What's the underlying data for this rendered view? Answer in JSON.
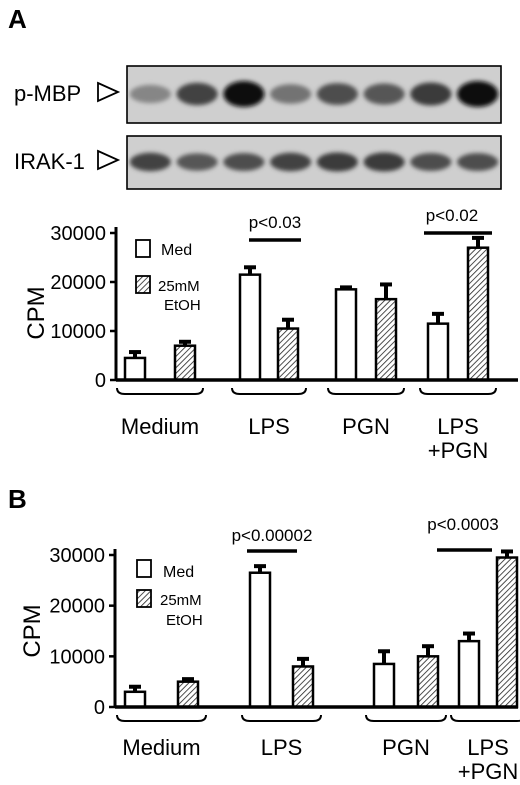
{
  "panels": [
    {
      "label": "A",
      "blot_labels": [
        "p-MBP",
        "IRAK-1"
      ]
    },
    {
      "label": "B"
    }
  ],
  "chart_data": [
    {
      "panel": "A",
      "type": "bar",
      "categories": [
        "Medium",
        "LPS",
        "PGN",
        "LPS +PGN"
      ],
      "category_lines": [
        [
          "Medium"
        ],
        [
          "LPS"
        ],
        [
          "PGN"
        ],
        [
          "LPS",
          "+PGN"
        ]
      ],
      "ylabel": "CPM",
      "ylim": [
        0,
        30000
      ],
      "yticks": [
        0,
        10000,
        20000,
        30000
      ],
      "legend": {
        "placement": "top-left",
        "entries": [
          "Med",
          "25mM EtOH"
        ]
      },
      "series": [
        {
          "name": "Med",
          "fill": "open",
          "values": [
            4500,
            21500,
            18500,
            11500
          ],
          "errors": [
            1200,
            1500,
            400,
            2000
          ]
        },
        {
          "name": "25mM EtOH",
          "fill": "hatched",
          "values": [
            7000,
            10500,
            16500,
            27000
          ],
          "errors": [
            800,
            1800,
            3000,
            2000
          ]
        }
      ],
      "annotations": [
        {
          "text": "p<0.03",
          "category": "LPS"
        },
        {
          "text": "p<0.02",
          "category": "LPS +PGN"
        }
      ],
      "grid": false
    },
    {
      "panel": "B",
      "type": "bar",
      "categories": [
        "Medium",
        "LPS",
        "PGN",
        "LPS +PGN"
      ],
      "category_lines": [
        [
          "Medium"
        ],
        [
          "LPS"
        ],
        [
          "PGN"
        ],
        [
          "LPS",
          "+PGN"
        ]
      ],
      "ylabel": "CPM",
      "ylim": [
        0,
        30000
      ],
      "yticks": [
        0,
        10000,
        20000,
        30000
      ],
      "legend": {
        "placement": "top-left",
        "entries": [
          "Med",
          "25mM EtOH"
        ]
      },
      "series": [
        {
          "name": "Med",
          "fill": "open",
          "values": [
            3000,
            26500,
            8500,
            13000
          ],
          "errors": [
            1000,
            1300,
            2500,
            1500
          ]
        },
        {
          "name": "25mM EtOH",
          "fill": "hatched",
          "values": [
            5000,
            8000,
            10000,
            29500
          ],
          "errors": [
            500,
            1500,
            2000,
            1200
          ]
        }
      ],
      "annotations": [
        {
          "text": "p<0.00002",
          "category": "LPS"
        },
        {
          "text": "p<0.0003",
          "category": "LPS +PGN"
        }
      ],
      "grid": false
    }
  ],
  "blots": [
    {
      "name": "p-MBP",
      "lanes": 8,
      "intensity": [
        0.35,
        0.7,
        1.0,
        0.45,
        0.65,
        0.6,
        0.75,
        1.0
      ]
    },
    {
      "name": "IRAK-1",
      "lanes": 8,
      "intensity": [
        0.7,
        0.6,
        0.65,
        0.7,
        0.75,
        0.75,
        0.65,
        0.65
      ]
    }
  ]
}
